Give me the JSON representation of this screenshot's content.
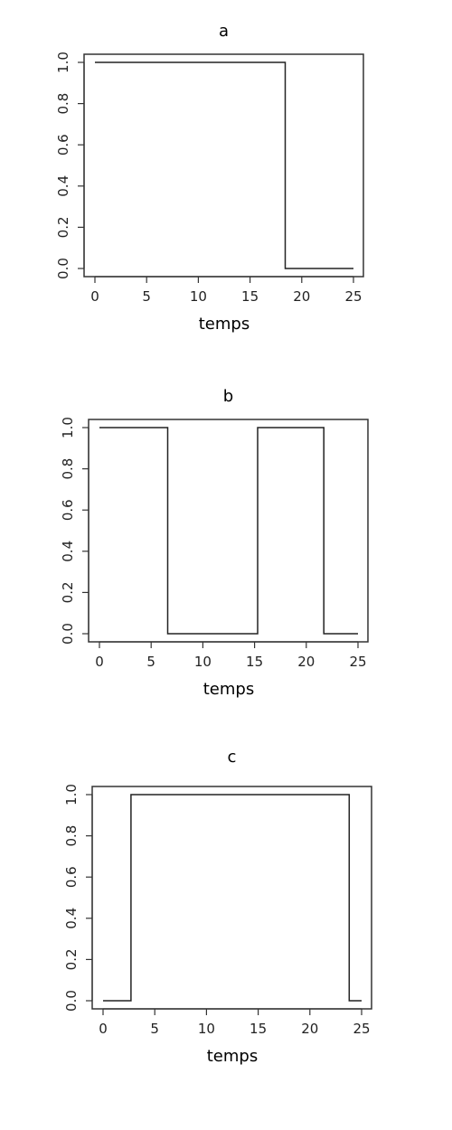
{
  "chart_data": [
    {
      "type": "line",
      "title": "a",
      "xlabel": "temps",
      "ylabel": "",
      "xlim": [
        0,
        25
      ],
      "ylim": [
        0,
        1
      ],
      "x_ticks": [
        0,
        5,
        10,
        15,
        20,
        25
      ],
      "y_ticks": [
        "0.0",
        "0.2",
        "0.4",
        "0.6",
        "0.8",
        "1.0"
      ],
      "step": true,
      "grid": false,
      "series": [
        {
          "x": [
            0,
            18.4,
            25
          ],
          "y": [
            1,
            0,
            0
          ]
        }
      ]
    },
    {
      "type": "line",
      "title": "b",
      "xlabel": "temps",
      "ylabel": "",
      "xlim": [
        0,
        25
      ],
      "ylim": [
        0,
        1
      ],
      "x_ticks": [
        0,
        5,
        10,
        15,
        20,
        25
      ],
      "y_ticks": [
        "0.0",
        "0.2",
        "0.4",
        "0.6",
        "0.8",
        "1.0"
      ],
      "step": true,
      "grid": false,
      "series": [
        {
          "x": [
            0,
            6.6,
            15.3,
            21.7,
            25
          ],
          "y": [
            1,
            0,
            1,
            0,
            0
          ]
        }
      ]
    },
    {
      "type": "line",
      "title": "c",
      "xlabel": "temps",
      "ylabel": "",
      "xlim": [
        0,
        25
      ],
      "ylim": [
        0,
        1
      ],
      "x_ticks": [
        0,
        5,
        10,
        15,
        20,
        25
      ],
      "y_ticks": [
        "0.0",
        "0.2",
        "0.4",
        "0.6",
        "0.8",
        "1.0"
      ],
      "step": true,
      "grid": false,
      "series": [
        {
          "x": [
            0,
            2.7,
            23.8,
            25
          ],
          "y": [
            0,
            1,
            0,
            0
          ]
        }
      ]
    }
  ]
}
